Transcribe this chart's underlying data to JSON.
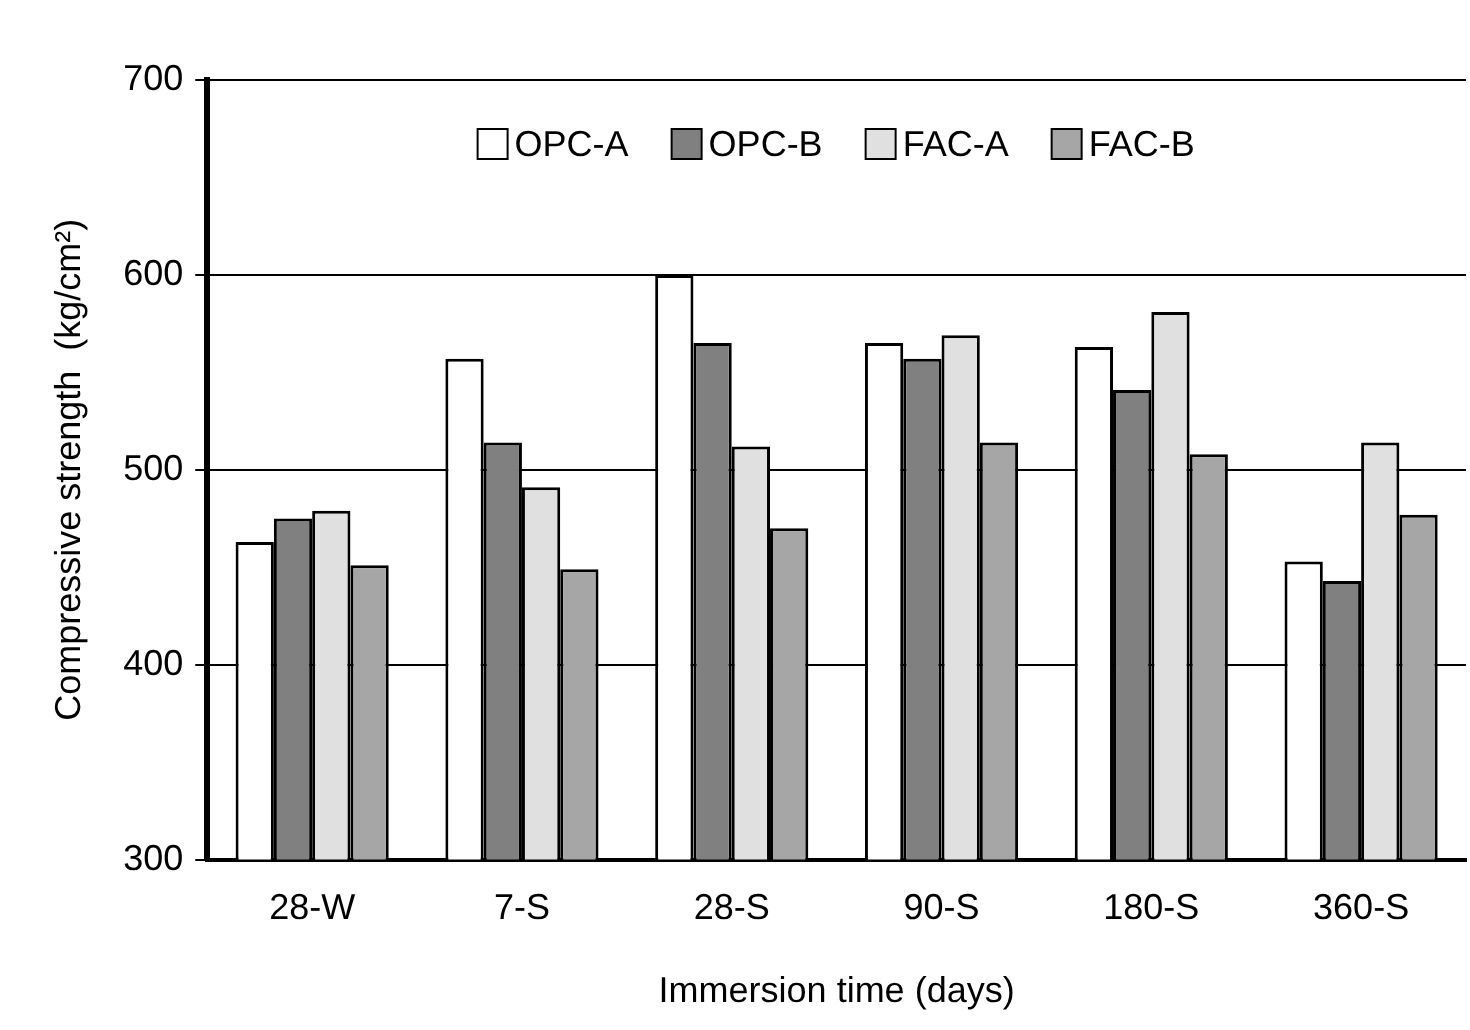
{
  "chart_data": {
    "type": "bar",
    "xlabel": "Immersion time (days)",
    "ylabel": "Compressive strength  (kg/cm²)",
    "categories": [
      "28-W",
      "7-S",
      "28-S",
      "90-S",
      "180-S",
      "360-S"
    ],
    "series": [
      {
        "name": "OPC-A",
        "color": "#ffffff",
        "values": [
          463,
          557,
          600,
          565,
          563,
          453
        ]
      },
      {
        "name": "OPC-B",
        "color": "#808080",
        "values": [
          475,
          514,
          565,
          557,
          541,
          443
        ]
      },
      {
        "name": "FAC-A",
        "color": "#e0e0e0",
        "values": [
          479,
          491,
          512,
          569,
          581,
          514
        ]
      },
      {
        "name": "FAC-B",
        "color": "#a6a6a6",
        "values": [
          451,
          449,
          470,
          514,
          508,
          477
        ]
      }
    ],
    "ylim": [
      300,
      700
    ],
    "yticks": [
      300,
      400,
      500,
      600,
      700
    ],
    "grid": "y",
    "legend": "top"
  }
}
